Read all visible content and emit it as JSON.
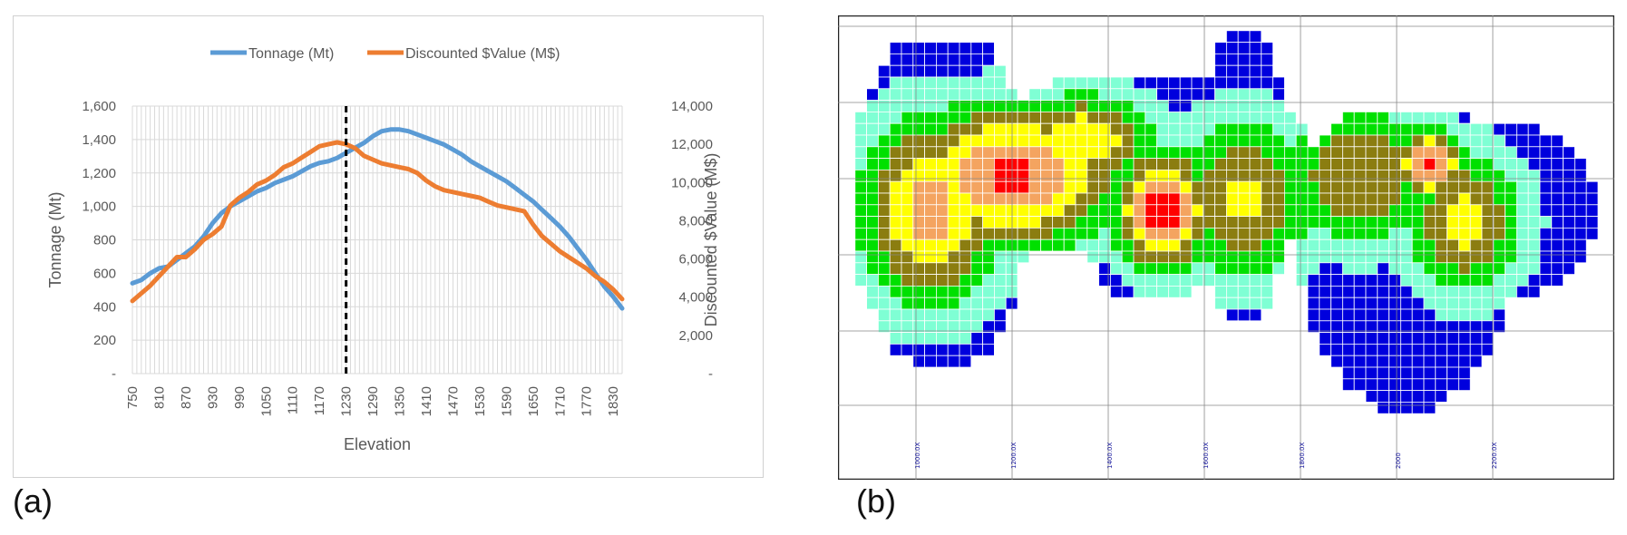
{
  "panels": {
    "a_label": "(a)",
    "b_label": "(b)"
  },
  "chart_data": [
    {
      "type": "line",
      "title": "",
      "xlabel": "Elevation",
      "ylabel": "Tonnage (Mt)",
      "y2label": "Discounted $Value (M$)",
      "legend_position": "top-center",
      "grid": true,
      "xlim": [
        750,
        1850
      ],
      "ylim": [
        0,
        1600
      ],
      "y2lim": [
        0,
        14000
      ],
      "x_tick_labels": [
        "750",
        "810",
        "870",
        "930",
        "990",
        "1050",
        "1110",
        "1170",
        "1230",
        "1290",
        "1350",
        "1410",
        "1470",
        "1530",
        "1590",
        "1650",
        "1710",
        "1770",
        "1830"
      ],
      "y_tick_labels": [
        "-",
        "200",
        "400",
        "600",
        "800",
        "1,000",
        "1,200",
        "1,400",
        "1,600"
      ],
      "y2_tick_labels": [
        "-",
        "2,000",
        "4,000",
        "6,000",
        "8,000",
        "10,000",
        "12,000",
        "14,000"
      ],
      "vertical_marker_x": 1230,
      "series": [
        {
          "name": "Tonnage (Mt)",
          "axis": "left",
          "color": "#5b9bd5",
          "x": [
            750,
            770,
            790,
            810,
            830,
            850,
            870,
            890,
            910,
            930,
            950,
            970,
            990,
            1010,
            1030,
            1050,
            1070,
            1090,
            1110,
            1130,
            1150,
            1170,
            1190,
            1210,
            1230,
            1250,
            1270,
            1290,
            1310,
            1330,
            1350,
            1370,
            1390,
            1410,
            1430,
            1450,
            1470,
            1490,
            1510,
            1530,
            1550,
            1570,
            1590,
            1610,
            1630,
            1650,
            1670,
            1690,
            1710,
            1730,
            1750,
            1770,
            1790,
            1810,
            1830,
            1850
          ],
          "values": [
            540,
            560,
            600,
            630,
            640,
            680,
            720,
            760,
            820,
            900,
            960,
            1000,
            1030,
            1060,
            1090,
            1110,
            1140,
            1160,
            1180,
            1210,
            1240,
            1260,
            1270,
            1290,
            1320,
            1350,
            1380,
            1420,
            1450,
            1460,
            1460,
            1450,
            1430,
            1410,
            1390,
            1370,
            1340,
            1310,
            1270,
            1240,
            1210,
            1180,
            1150,
            1110,
            1070,
            1030,
            980,
            930,
            880,
            820,
            750,
            680,
            600,
            520,
            460,
            390
          ]
        },
        {
          "name": "Discounted $Value (M$)",
          "axis": "right",
          "color": "#ed7d31",
          "x": [
            750,
            770,
            790,
            810,
            830,
            850,
            870,
            890,
            910,
            930,
            950,
            970,
            990,
            1010,
            1030,
            1050,
            1070,
            1090,
            1110,
            1130,
            1150,
            1170,
            1190,
            1210,
            1230,
            1250,
            1270,
            1290,
            1310,
            1330,
            1350,
            1370,
            1390,
            1410,
            1430,
            1450,
            1470,
            1490,
            1510,
            1530,
            1550,
            1570,
            1590,
            1610,
            1630,
            1650,
            1670,
            1690,
            1710,
            1730,
            1750,
            1770,
            1790,
            1810,
            1830,
            1850
          ],
          "values": [
            3800,
            4200,
            4600,
            5100,
            5600,
            6100,
            6100,
            6500,
            7000,
            7300,
            7700,
            8800,
            9200,
            9500,
            9900,
            10100,
            10400,
            10800,
            11000,
            11300,
            11600,
            11900,
            12000,
            12100,
            12000,
            11800,
            11400,
            11200,
            11000,
            10900,
            10800,
            10700,
            10500,
            10100,
            9800,
            9600,
            9500,
            9400,
            9300,
            9200,
            9000,
            8800,
            8700,
            8600,
            8500,
            7800,
            7200,
            6800,
            6400,
            6100,
            5800,
            5500,
            5100,
            4800,
            4400,
            3900
          ]
        }
      ]
    },
    {
      "type": "heatmap",
      "title": "",
      "x_tick_labels": [
        "1000.0X",
        "1200.0X",
        "1400.0X",
        "1600.0X",
        "1800.0X",
        "2000",
        "2200.0X"
      ],
      "cell_colors": [
        "#ffffff",
        "#0000dd",
        "#7fffd4",
        "#00e000",
        "#8b7d10",
        "#ffff00",
        "#f4a460",
        "#ff0000"
      ],
      "note_values": "grid cell grade class 0-7"
    }
  ]
}
